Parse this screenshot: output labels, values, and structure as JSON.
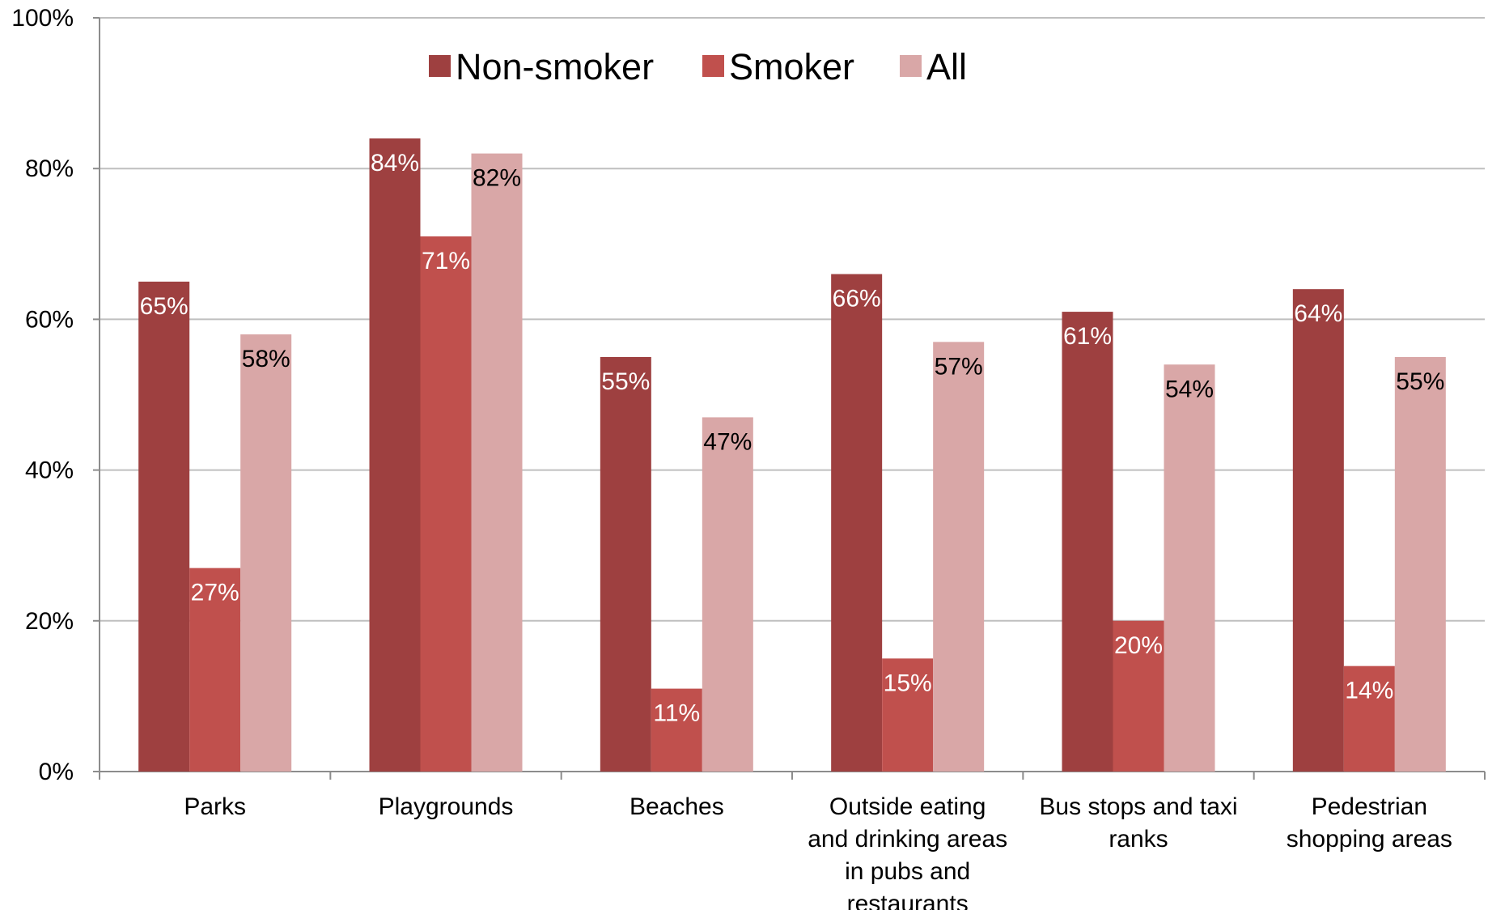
{
  "chart_data": {
    "type": "bar",
    "categories": [
      [
        "Parks"
      ],
      [
        "Playgrounds"
      ],
      [
        "Beaches"
      ],
      [
        "Outside eating",
        "and drinking areas",
        "in pubs and",
        "restaurants"
      ],
      [
        "Bus stops and taxi",
        "ranks"
      ],
      [
        "Pedestrian",
        "shopping areas"
      ]
    ],
    "series": [
      {
        "name": "Non-smoker",
        "color": "#9e4040",
        "values": [
          65,
          84,
          55,
          66,
          61,
          64
        ],
        "labels": [
          "65%",
          "84%",
          "55%",
          "66%",
          "61%",
          "64%"
        ],
        "label_color": "#ffffff"
      },
      {
        "name": "Smoker",
        "color": "#c0504d",
        "values": [
          27,
          71,
          11,
          15,
          20,
          14
        ],
        "labels": [
          "27%",
          "71%",
          "11%",
          "15%",
          "20%",
          "14%"
        ],
        "label_color": "#ffffff"
      },
      {
        "name": "All",
        "color": "#d9a7a7",
        "values": [
          58,
          82,
          47,
          57,
          54,
          55
        ],
        "labels": [
          "58%",
          "82%",
          "47%",
          "57%",
          "54%",
          "55%"
        ],
        "label_color": "#000000"
      }
    ],
    "yticks": [
      "0%",
      "20%",
      "40%",
      "60%",
      "80%",
      "100%"
    ],
    "ylim": [
      0,
      100
    ],
    "grid": true,
    "legend_position": "top"
  }
}
